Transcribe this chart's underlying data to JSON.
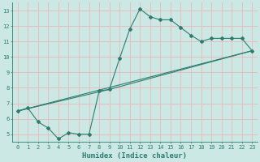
{
  "xlabel": "Humidex (Indice chaleur)",
  "line1_x": [
    0,
    1,
    2,
    3,
    4,
    5,
    6,
    7,
    8,
    9,
    10,
    11,
    12,
    13,
    14,
    15,
    16,
    17,
    18,
    19,
    20,
    21,
    22,
    23
  ],
  "line1_y": [
    6.5,
    6.7,
    5.8,
    5.4,
    4.7,
    5.1,
    5.0,
    5.0,
    7.8,
    7.9,
    9.9,
    11.8,
    13.1,
    12.6,
    12.4,
    12.4,
    11.9,
    11.4,
    11.0,
    11.2,
    11.2,
    11.2,
    11.2,
    10.4
  ],
  "line2_x": [
    0,
    23
  ],
  "line2_y": [
    6.5,
    10.4
  ],
  "line3_x": [
    0,
    9,
    23
  ],
  "line3_y": [
    6.5,
    7.9,
    10.4
  ],
  "color": "#2d7d6e",
  "bg_color": "#cce8e5",
  "grid_color": "#e8b8b8",
  "xlim": [
    -0.5,
    23.5
  ],
  "ylim": [
    4.5,
    13.5
  ],
  "xticks": [
    0,
    1,
    2,
    3,
    4,
    5,
    6,
    7,
    8,
    9,
    10,
    11,
    12,
    13,
    14,
    15,
    16,
    17,
    18,
    19,
    20,
    21,
    22,
    23
  ],
  "yticks": [
    5,
    6,
    7,
    8,
    9,
    10,
    11,
    12,
    13
  ],
  "marker": "D",
  "markersize": 2.0,
  "linewidth": 0.8,
  "tick_fontsize": 5.0,
  "xlabel_fontsize": 6.5
}
